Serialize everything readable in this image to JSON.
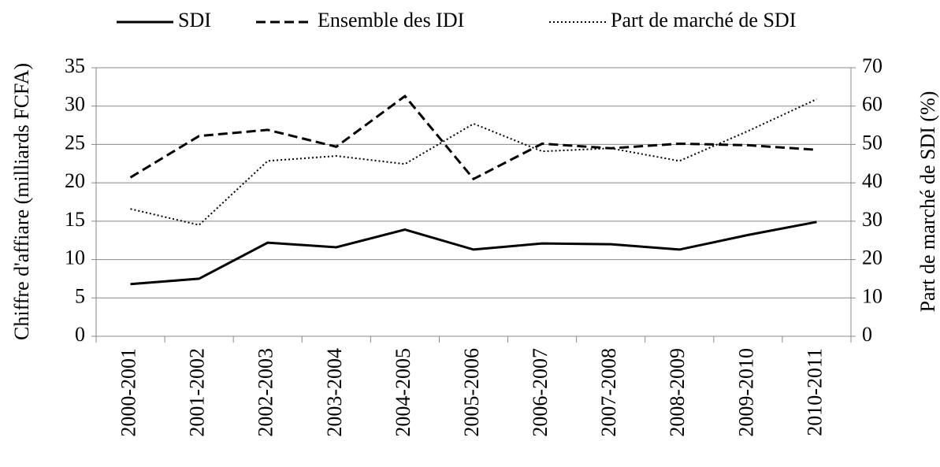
{
  "chart_data": {
    "type": "line",
    "categories": [
      "2000-2001",
      "2001-2002",
      "2002-2003",
      "2003-2004",
      "2004-2005",
      "2005-2006",
      "2006-2007",
      "2007-2008",
      "2008-2009",
      "2009-2010",
      "2010-2011"
    ],
    "ylabel": "Chiffre d'affiare (milliards FCFA)",
    "y2label": "Part de marché de SDI (%)",
    "ylim": [
      0,
      35
    ],
    "yticks": [
      0,
      5,
      10,
      15,
      20,
      25,
      30,
      35
    ],
    "y2lim": [
      0,
      70
    ],
    "y2ticks": [
      0,
      10,
      20,
      30,
      40,
      50,
      60,
      70
    ],
    "grid": true,
    "legend": "top",
    "series": [
      {
        "name": "SDI",
        "color": "#000000",
        "style": "solid",
        "values": [
          6.8,
          7.5,
          12.2,
          11.6,
          13.9,
          11.3,
          12.1,
          12.0,
          11.3,
          13.2,
          14.9
        ]
      },
      {
        "name": "Ensemble des IDI",
        "color": "#000000",
        "style": "dashed",
        "values": [
          20.7,
          26.1,
          26.9,
          24.7,
          31.3,
          20.5,
          25.1,
          24.5,
          25.1,
          24.9,
          24.3
        ]
      },
      {
        "name": "Part de marché de SDI",
        "color": "#000000",
        "style": "dotted",
        "axis": "y2",
        "values": [
          33.2,
          29.0,
          45.7,
          47.0,
          44.9,
          55.4,
          48.2,
          49.0,
          45.7,
          53.5,
          61.8
        ]
      }
    ]
  }
}
